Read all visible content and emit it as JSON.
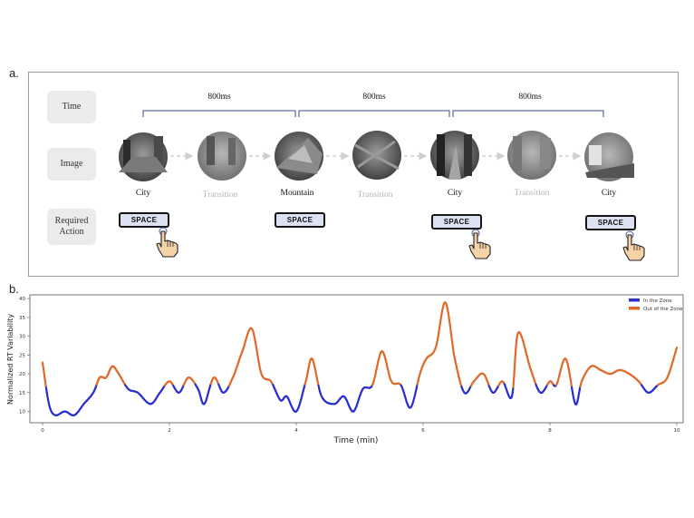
{
  "panel_a": {
    "label": "a.",
    "row_labels": {
      "time": "Time",
      "image": "Image",
      "action": "Required Action"
    },
    "intervals": [
      "800ms",
      "800ms",
      "800ms"
    ],
    "frames": [
      {
        "caption": "City",
        "kind": "target"
      },
      {
        "caption": "Transition",
        "kind": "transition"
      },
      {
        "caption": "Mountain",
        "kind": "target"
      },
      {
        "caption": "Transition",
        "kind": "transition"
      },
      {
        "caption": "City",
        "kind": "target"
      },
      {
        "caption": "Transition",
        "kind": "transition"
      },
      {
        "caption": "City",
        "kind": "target"
      }
    ],
    "actions": [
      {
        "label": "SPACE",
        "hand": true
      },
      {
        "label": "SPACE",
        "hand": false
      },
      {
        "label": "SPACE",
        "hand": true
      },
      {
        "label": "SPACE",
        "hand": true
      }
    ]
  },
  "panel_b": {
    "label": "b.",
    "chart_data": {
      "type": "line",
      "xlabel": "Time (min)",
      "ylabel": "Normalized RT Variability",
      "xlim": [
        -0.2,
        10.1
      ],
      "ylim": [
        7,
        41
      ],
      "xticks": [
        0,
        2,
        4,
        6,
        8,
        10
      ],
      "yticks": [
        10,
        15,
        20,
        25,
        30,
        35,
        40
      ],
      "legend": {
        "position": "top-right",
        "entries": [
          {
            "name": "In the Zone",
            "color": "#2b2fcf"
          },
          {
            "name": "Out of the Zone",
            "color": "#e06a2a"
          }
        ]
      },
      "threshold": 17,
      "series": [
        {
          "name": "Normalized RT Variability",
          "x": [
            0,
            0.1,
            0.2,
            0.35,
            0.5,
            0.65,
            0.8,
            0.9,
            1.0,
            1.1,
            1.2,
            1.35,
            1.5,
            1.7,
            1.85,
            2.0,
            2.15,
            2.3,
            2.45,
            2.55,
            2.7,
            2.85,
            3.0,
            3.15,
            3.3,
            3.45,
            3.6,
            3.75,
            3.85,
            4.0,
            4.15,
            4.25,
            4.4,
            4.6,
            4.75,
            4.9,
            5.05,
            5.2,
            5.35,
            5.5,
            5.65,
            5.8,
            5.95,
            6.05,
            6.2,
            6.35,
            6.5,
            6.65,
            6.8,
            6.95,
            7.1,
            7.25,
            7.4,
            7.5,
            7.7,
            7.85,
            8.0,
            8.1,
            8.25,
            8.4,
            8.5,
            8.65,
            8.8,
            8.95,
            9.1,
            9.25,
            9.4,
            9.55,
            9.7,
            9.85,
            10.0
          ],
          "y": [
            23,
            12,
            9,
            10,
            9,
            12,
            15,
            19,
            19,
            22,
            20,
            16,
            15,
            12,
            15,
            18,
            15,
            19,
            16,
            12,
            19,
            15,
            19,
            26,
            32,
            20,
            18,
            13,
            14,
            10,
            18,
            24,
            14,
            12,
            14,
            10,
            16,
            17,
            26,
            18,
            17,
            11,
            20,
            24,
            27,
            39,
            24,
            15,
            18,
            20,
            15,
            18,
            14,
            31,
            21,
            15,
            18,
            17,
            24,
            12,
            18,
            22,
            21,
            20,
            21,
            20,
            18,
            15,
            17,
            19,
            27
          ]
        }
      ]
    }
  }
}
